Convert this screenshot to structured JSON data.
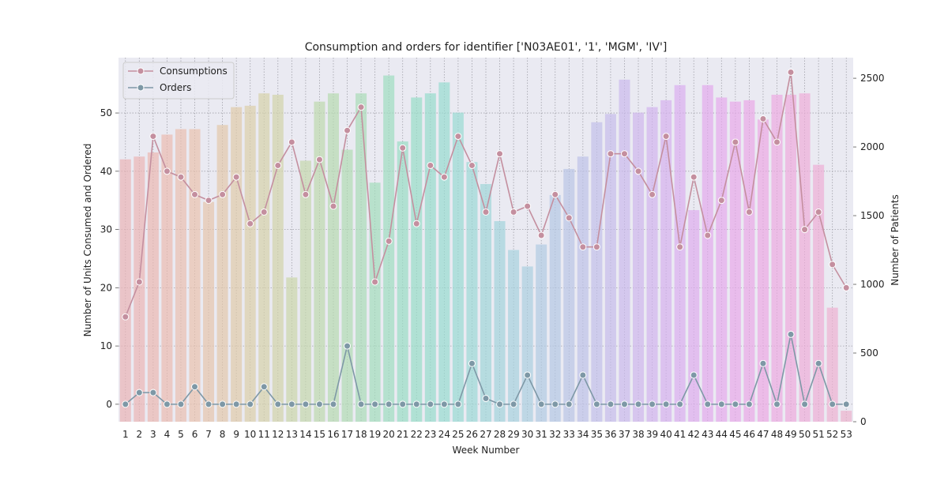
{
  "chart_data": {
    "type": "bar",
    "title": "Consumption and orders for identifier ['N03AE01', '1', 'MGM', 'IV']",
    "xlabel": "Week Number",
    "ylabel": "Number of Units Consumed and Ordered",
    "ylabel_right": "Number of Patients",
    "ylim": [
      -3,
      59.5
    ],
    "ylim_right": [
      0,
      2650
    ],
    "yticks": [
      0,
      10,
      20,
      30,
      40,
      50
    ],
    "yticks_right": [
      0,
      500,
      1000,
      1500,
      2000,
      2500
    ],
    "grid": true,
    "legend_position": "top-left",
    "categories": [
      "1",
      "2",
      "3",
      "4",
      "5",
      "6",
      "7",
      "8",
      "9",
      "10",
      "11",
      "12",
      "13",
      "14",
      "15",
      "16",
      "17",
      "18",
      "19",
      "20",
      "21",
      "22",
      "23",
      "24",
      "25",
      "26",
      "27",
      "28",
      "29",
      "30",
      "31",
      "32",
      "33",
      "34",
      "35",
      "36",
      "37",
      "38",
      "39",
      "40",
      "41",
      "42",
      "43",
      "44",
      "45",
      "46",
      "47",
      "48",
      "49",
      "50",
      "51",
      "52",
      "53"
    ],
    "bar_series": {
      "axis": "right",
      "values": [
        1910,
        1930,
        1960,
        2090,
        2130,
        2130,
        1600,
        2160,
        2290,
        2300,
        2390,
        2380,
        1050,
        1900,
        2330,
        2390,
        1980,
        2390,
        1740,
        2520,
        2040,
        2360,
        2390,
        2470,
        2250,
        1890,
        1730,
        1460,
        1250,
        1130,
        1290,
        1650,
        1840,
        1930,
        2180,
        2240,
        2490,
        2250,
        2290,
        2340,
        2450,
        1540,
        2450,
        2360,
        2330,
        2340,
        2200,
        2380,
        2380,
        2390,
        1870,
        830,
        80
      ]
    },
    "series": [
      {
        "name": "Consumptions",
        "axis": "left",
        "color": "#c48f9f",
        "values": [
          15,
          21,
          46,
          40,
          39,
          36,
          35,
          36,
          39,
          31,
          33,
          41,
          45,
          36,
          42,
          34,
          47,
          51,
          21,
          28,
          44,
          31,
          41,
          39,
          46,
          41,
          33,
          43,
          33,
          34,
          29,
          36,
          32,
          27,
          27,
          43,
          43,
          40,
          36,
          46,
          27,
          39,
          29,
          35,
          45,
          33,
          49,
          45,
          57,
          30,
          33,
          24,
          20
        ]
      },
      {
        "name": "Orders",
        "axis": "left",
        "color": "#7e98a6",
        "values": [
          0,
          2,
          2,
          0,
          0,
          3,
          0,
          0,
          0,
          0,
          3,
          0,
          0,
          0,
          0,
          0,
          10,
          0,
          0,
          0,
          0,
          0,
          0,
          0,
          0,
          7,
          1,
          0,
          0,
          5,
          0,
          0,
          0,
          5,
          0,
          0,
          0,
          0,
          0,
          0,
          0,
          5,
          0,
          0,
          0,
          0,
          7,
          0,
          12,
          0,
          7,
          0,
          0
        ]
      }
    ],
    "bar_colors": [
      "#eab3b6",
      "#ebb5b5",
      "#ebb8b2",
      "#ebbbb1",
      "#eabfb0",
      "#e9c2ae",
      "#e6c5ad",
      "#e2c8ab",
      "#dfcbaa",
      "#dbceaa",
      "#d6d1a9",
      "#d1d3a9",
      "#cbd5aa",
      "#c5d7ac",
      "#bed9ae",
      "#b7dab1",
      "#b0dbb4",
      "#a9dcb8",
      "#a3ddbc",
      "#9eddc0",
      "#99ddc4",
      "#97ddc8",
      "#96dccc",
      "#97dbd0",
      "#98dad3",
      "#9bd8d6",
      "#9fd6d9",
      "#a3d3db",
      "#a7d1de",
      "#abcee0",
      "#b0cbe2",
      "#b4c8e4",
      "#b9c5e6",
      "#bdc2e8",
      "#c2bfe9",
      "#c6bceb",
      "#cab9ec",
      "#ceb6ed",
      "#d2b3ee",
      "#d6b1ee",
      "#daaeef",
      "#deacee",
      "#e2aaed",
      "#e5a9ec",
      "#e8a8ea",
      "#eaa8e7",
      "#eca8e4",
      "#eda9e1",
      "#eeaadd",
      "#eeacd9",
      "#eeaed5",
      "#eeb0d1",
      "#edb2cd"
    ]
  }
}
